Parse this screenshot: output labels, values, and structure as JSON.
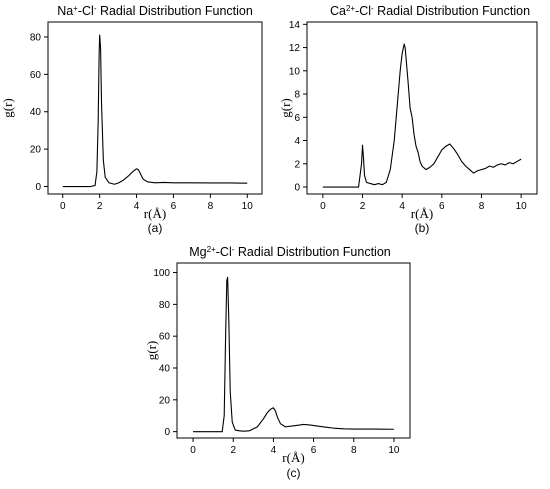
{
  "chart_data": [
    {
      "type": "line",
      "title_parts": [
        {
          "t": "Na"
        },
        {
          "t": "+",
          "sup": true
        },
        {
          "t": "-Cl"
        },
        {
          "t": "-",
          "sup": true
        },
        {
          "t": " Radial Distribution Function"
        }
      ],
      "xlabel": "r(Å)",
      "ylabel": "g(r)",
      "sublabel": "(a)",
      "xlim": [
        -0.8,
        10.8
      ],
      "ylim": [
        -4,
        88
      ],
      "xticks": [
        0,
        2,
        4,
        6,
        8,
        10
      ],
      "yticks": [
        0,
        20,
        40,
        60,
        80
      ],
      "grid": false,
      "legend": "none",
      "series": [
        {
          "x": [
            0,
            1.5,
            1.75,
            1.85,
            1.92,
            1.97,
            2.0,
            2.05,
            2.1,
            2.2,
            2.3,
            2.5,
            2.8,
            3.0,
            3.3,
            3.6,
            3.8,
            4.0,
            4.1,
            4.2,
            4.35,
            4.6,
            5.0,
            5.5,
            6.0,
            7.0,
            8.0,
            9.0,
            10.0
          ],
          "y": [
            0,
            0,
            0.5,
            8,
            35,
            70,
            81,
            74,
            45,
            14,
            5,
            2,
            1.2,
            1.8,
            3.5,
            6,
            8,
            9.5,
            9,
            7,
            4,
            2.5,
            2,
            2.2,
            2.0,
            2.0,
            1.9,
            1.9,
            1.8
          ]
        }
      ]
    },
    {
      "type": "line",
      "title_parts": [
        {
          "t": "Ca"
        },
        {
          "t": "2+",
          "sup": true
        },
        {
          "t": "-Cl"
        },
        {
          "t": "-",
          "sup": true
        },
        {
          "t": " Radial Distribution Function"
        }
      ],
      "xlabel": "r(Å)",
      "ylabel": "g(r)",
      "sublabel": "(b)",
      "xlim": [
        -0.8,
        10.8
      ],
      "ylim": [
        -0.6,
        14.2
      ],
      "xticks": [
        0,
        2,
        4,
        6,
        8,
        10
      ],
      "yticks": [
        0,
        2,
        4,
        6,
        8,
        10,
        12,
        14
      ],
      "grid": false,
      "legend": "none",
      "series": [
        {
          "x": [
            0,
            1.8,
            1.95,
            2.0,
            2.05,
            2.1,
            2.2,
            2.4,
            2.6,
            2.8,
            3.0,
            3.2,
            3.4,
            3.6,
            3.7,
            3.8,
            3.9,
            4.0,
            4.1,
            4.15,
            4.2,
            4.3,
            4.4,
            4.5,
            4.6,
            4.7,
            4.8,
            4.9,
            5.0,
            5.2,
            5.4,
            5.6,
            5.8,
            6.0,
            6.2,
            6.4,
            6.6,
            6.8,
            7.0,
            7.2,
            7.4,
            7.6,
            7.8,
            8.0,
            8.2,
            8.4,
            8.6,
            8.8,
            9.0,
            9.2,
            9.4,
            9.6,
            9.8,
            10.0
          ],
          "y": [
            0,
            0,
            2.0,
            3.6,
            2.5,
            1.0,
            0.4,
            0.3,
            0.2,
            0.3,
            0.2,
            0.4,
            1.5,
            4.0,
            6.0,
            8.0,
            10.0,
            11.5,
            12.3,
            12.0,
            11.0,
            9.0,
            6.8,
            6.0,
            4.5,
            3.5,
            3.0,
            2.2,
            1.8,
            1.5,
            1.7,
            2.0,
            2.6,
            3.2,
            3.5,
            3.7,
            3.3,
            2.8,
            2.2,
            1.8,
            1.5,
            1.2,
            1.4,
            1.5,
            1.6,
            1.8,
            1.7,
            1.9,
            2.0,
            1.9,
            2.1,
            2.0,
            2.2,
            2.4
          ]
        }
      ]
    },
    {
      "type": "line",
      "title_parts": [
        {
          "t": "Mg"
        },
        {
          "t": "2+",
          "sup": true
        },
        {
          "t": "-Cl"
        },
        {
          "t": "-",
          "sup": true
        },
        {
          "t": " Radial Distribution Function"
        }
      ],
      "xlabel": "r(Å)",
      "ylabel": "g(r)",
      "sublabel": "(c)",
      "xlim": [
        -0.8,
        10.8
      ],
      "ylim": [
        -4,
        106
      ],
      "xticks": [
        0,
        2,
        4,
        6,
        8,
        10
      ],
      "yticks": [
        0,
        20,
        40,
        60,
        80,
        100
      ],
      "grid": false,
      "legend": "none",
      "series": [
        {
          "x": [
            0,
            1.45,
            1.55,
            1.62,
            1.68,
            1.72,
            1.78,
            1.85,
            1.95,
            2.1,
            2.3,
            2.5,
            2.8,
            3.2,
            3.5,
            3.7,
            3.85,
            4.0,
            4.1,
            4.2,
            4.35,
            4.6,
            4.9,
            5.2,
            5.5,
            5.8,
            6.2,
            6.6,
            7.0,
            7.5,
            8.0,
            9.0,
            10.0
          ],
          "y": [
            0,
            0,
            10,
            60,
            95,
            97,
            70,
            25,
            6,
            1,
            0.5,
            0.3,
            0.5,
            3,
            8,
            12,
            14,
            15,
            13,
            9,
            5,
            3,
            3.5,
            4,
            4.5,
            4.2,
            3.5,
            2.8,
            2.2,
            1.8,
            1.6,
            1.6,
            1.5
          ]
        }
      ]
    }
  ]
}
